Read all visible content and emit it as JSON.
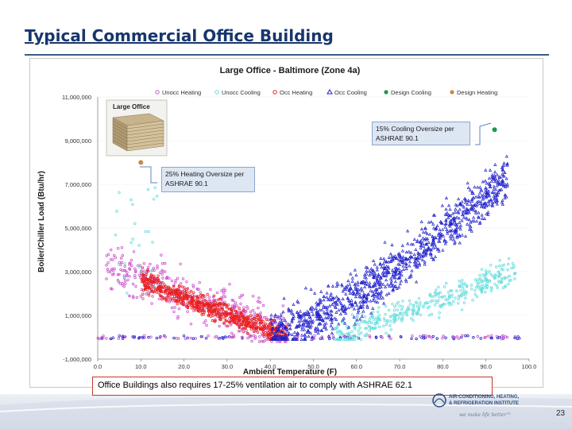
{
  "slide": {
    "title": "Typical Commercial Office Building",
    "page_number": "23"
  },
  "callouts": {
    "cooling": "15% Cooling Oversize per ASHRAE 90.1",
    "heating": "25% Heating Oversize per ASHRAE 90.1"
  },
  "note": "Office Buildings also requires 17-25% ventilation air to comply with ASHRAE 62.1",
  "footer": {
    "org_name_line1": "AIR-CONDITIONING, HEATING,",
    "org_name_line2": "& REFRIGERATION INSTITUTE",
    "tagline": "we make life better™"
  },
  "inset": {
    "label": "Large Office"
  },
  "colors": {
    "title": "#17366d",
    "unocc_heating": "#cc55cc",
    "unocc_cooling": "#66dddd",
    "occ_heating": "#e82020",
    "occ_cooling": "#2020cc",
    "design_cooling": "#1a9a4a",
    "design_heating": "#c8884a"
  },
  "chart_data": {
    "type": "scatter",
    "title": "Large Office - Baltimore (Zone 4a)",
    "xlabel": "Ambient Temperature (F)",
    "ylabel": "Boiler/Chiller Load (Btu/hr)",
    "xlim": [
      0,
      100
    ],
    "ylim": [
      -1000000,
      11000000
    ],
    "x_ticks": [
      "0.0",
      "10.0",
      "20.0",
      "30.0",
      "40.0",
      "50.0",
      "60.0",
      "70.0",
      "80.0",
      "90.0",
      "100.0"
    ],
    "y_ticks": [
      "-1,000,000",
      "1,000,000",
      "3,000,000",
      "5,000,000",
      "7,000,000",
      "9,000,000",
      "11,000,000"
    ],
    "legend_position": "top",
    "series": [
      {
        "name": "Unocc Heating",
        "marker": "circle"
      },
      {
        "name": "Unocc Cooling",
        "marker": "circle"
      },
      {
        "name": "Occ Heating",
        "marker": "circle"
      },
      {
        "name": "Occ Cooling",
        "marker": "triangle"
      },
      {
        "name": "Design Cooling",
        "marker": "dot"
      },
      {
        "name": "Design Heating",
        "marker": "dot"
      }
    ],
    "design_points": {
      "design_cooling": {
        "x": 92,
        "y": 9500000
      },
      "design_heating": {
        "x": 10,
        "y": 8000000
      }
    }
  }
}
